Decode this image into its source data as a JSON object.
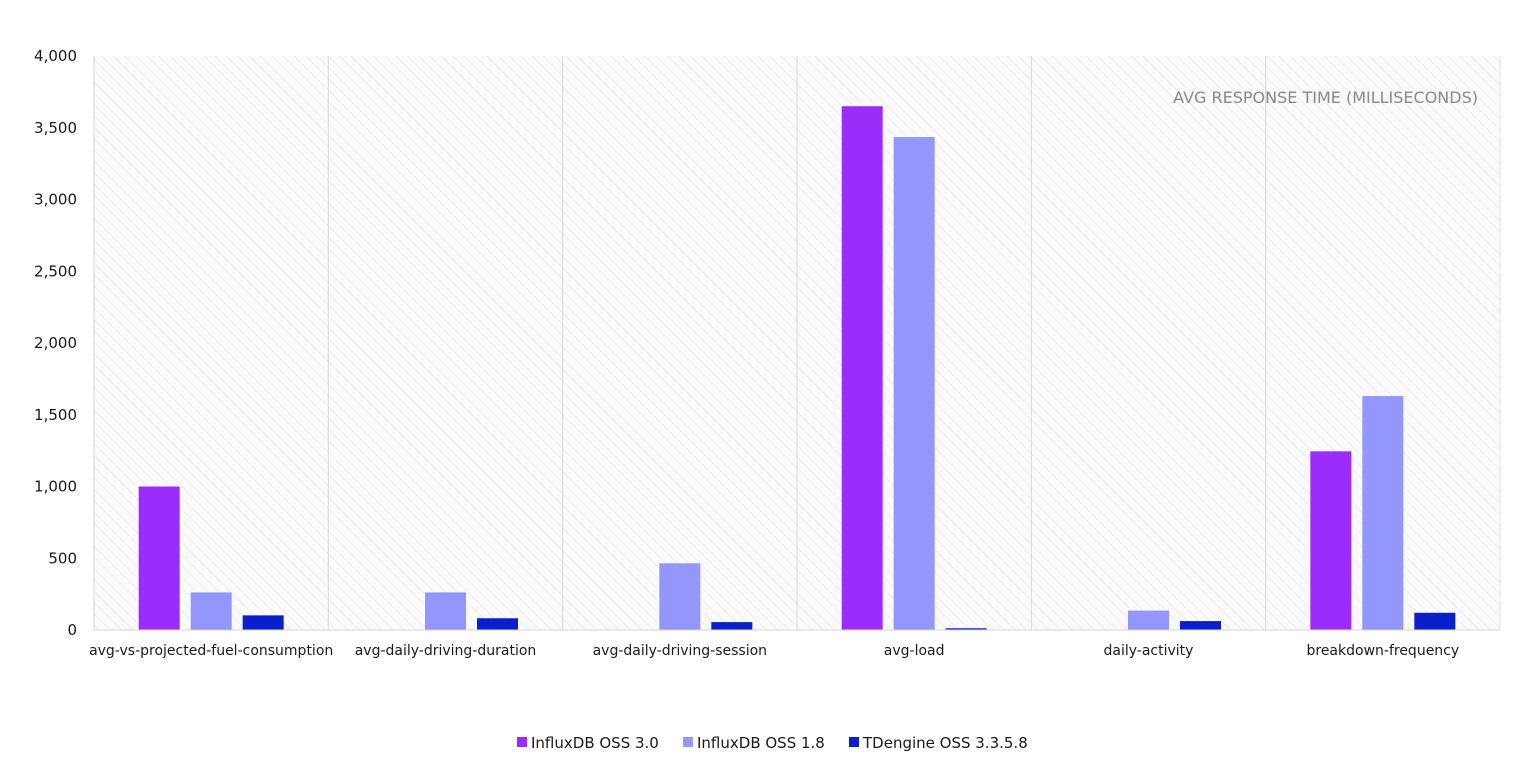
{
  "chart_data": {
    "type": "bar",
    "title": "AVG RESPONSE TIME (MILLISECONDS)",
    "xlabel": "",
    "ylabel": "",
    "ylim": [
      0,
      4000
    ],
    "yticks": [
      "0",
      "500",
      "1,000",
      "1,500",
      "2,000",
      "2,500",
      "3,000",
      "3,500",
      "4,000"
    ],
    "ytick_values": [
      0,
      500,
      1000,
      1500,
      2000,
      2500,
      3000,
      3500,
      4000
    ],
    "categories": [
      "avg-vs-projected-fuel-consumption",
      "avg-daily-driving-duration",
      "avg-daily-driving-session",
      "avg-load",
      "daily-activity",
      "breakdown-frequency"
    ],
    "series": [
      {
        "name": "InfluxDB OSS 3.0",
        "color": "#9b2cfc",
        "values": [
          1000,
          null,
          null,
          3650,
          null,
          1245
        ]
      },
      {
        "name": "InfluxDB OSS 1.8",
        "color": "#9396fb",
        "values": [
          262,
          262,
          465,
          3435,
          135,
          1630
        ]
      },
      {
        "name": "TDengine OSS 3.3.5.8",
        "color": "#0a1fcb",
        "values": [
          102,
          82,
          55,
          12,
          62,
          120
        ]
      }
    ],
    "grid": true,
    "legend_position": "bottom-center",
    "title_position": "top-right-inside"
  }
}
